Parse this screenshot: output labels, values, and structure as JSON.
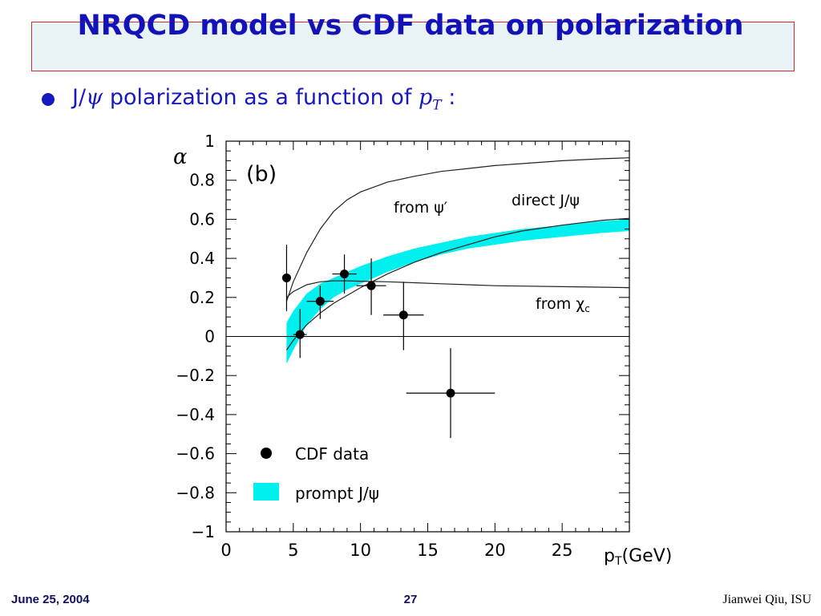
{
  "slide": {
    "title": "NRQCD model vs CDF data on polarization",
    "bullet": {
      "prefix": "J/",
      "psi": "ψ",
      "middle": " polarization as a function of ",
      "pt_p": "p",
      "pt_sub": "T",
      "suffix": " :"
    }
  },
  "footer": {
    "date": "June 25, 2004",
    "page": "27",
    "author": "Jianwei Qiu, ISU"
  },
  "colors": {
    "title": "#1212b8",
    "bullet": "#1818c0",
    "band": "#00f0f0",
    "title_border": "#d62a2a",
    "title_bg": "#e9f3f5"
  },
  "chart_data": {
    "type": "line",
    "panel_label": "(b)",
    "ylabel": "α",
    "xlabel_main": "p",
    "xlabel_sub": "T",
    "xlabel_tail": "(GeV)",
    "xlim": [
      0,
      30
    ],
    "ylim": [
      -1,
      1
    ],
    "x_ticks": [
      0,
      5,
      10,
      15,
      20,
      25
    ],
    "y_ticks": [
      {
        "v": 1,
        "label": "1"
      },
      {
        "v": 0.8,
        "label": "0.8"
      },
      {
        "v": 0.6,
        "label": "0.6"
      },
      {
        "v": 0.4,
        "label": "0.4"
      },
      {
        "v": 0.2,
        "label": "0.2"
      },
      {
        "v": 0,
        "label": "0"
      },
      {
        "v": -0.2,
        "label": "−0.2"
      },
      {
        "v": -0.4,
        "label": "−0.4"
      },
      {
        "v": -0.6,
        "label": "−0.6"
      },
      {
        "v": -0.8,
        "label": "−0.8"
      },
      {
        "v": -1,
        "label": "−1"
      }
    ],
    "grid": false,
    "series": [
      {
        "name": "from ψ′",
        "kind": "curve",
        "x": [
          4.5,
          5,
          6,
          7,
          8,
          9,
          10,
          12,
          14,
          16,
          18,
          20,
          22,
          25,
          28,
          30
        ],
        "y": [
          0.18,
          0.28,
          0.43,
          0.55,
          0.64,
          0.7,
          0.74,
          0.79,
          0.82,
          0.845,
          0.86,
          0.875,
          0.885,
          0.9,
          0.91,
          0.915
        ]
      },
      {
        "name": "direct J/ψ",
        "kind": "curve",
        "x": [
          4.5,
          5,
          6,
          7,
          8,
          9,
          10,
          12,
          14,
          16,
          18,
          20,
          22,
          25,
          28,
          30
        ],
        "y": [
          -0.07,
          -0.02,
          0.06,
          0.12,
          0.17,
          0.21,
          0.25,
          0.32,
          0.38,
          0.43,
          0.47,
          0.51,
          0.54,
          0.57,
          0.595,
          0.605
        ]
      },
      {
        "name": "from χc",
        "kind": "curve",
        "x": [
          4.5,
          5,
          6,
          7,
          8,
          9,
          10,
          12,
          14,
          16,
          18,
          20,
          25,
          30
        ],
        "y": [
          0.2,
          0.23,
          0.265,
          0.28,
          0.285,
          0.285,
          0.283,
          0.28,
          0.275,
          0.27,
          0.265,
          0.26,
          0.255,
          0.25
        ]
      },
      {
        "name": "prompt J/ψ",
        "kind": "band",
        "x": [
          4.5,
          5,
          6,
          7,
          8,
          9,
          10,
          12,
          14,
          16,
          18,
          20,
          22,
          25,
          28,
          30
        ],
        "y_low": [
          -0.14,
          -0.07,
          0.06,
          0.14,
          0.2,
          0.24,
          0.27,
          0.33,
          0.38,
          0.42,
          0.45,
          0.47,
          0.49,
          0.51,
          0.53,
          0.54
        ],
        "y_high": [
          0.07,
          0.13,
          0.22,
          0.27,
          0.3,
          0.33,
          0.36,
          0.41,
          0.45,
          0.48,
          0.51,
          0.53,
          0.55,
          0.57,
          0.59,
          0.6
        ]
      },
      {
        "name": "CDF data",
        "kind": "points",
        "points": [
          {
            "x": 4.5,
            "y": 0.3,
            "xerr": 0.3,
            "yerr_up": 0.17,
            "yerr_down": 0.17
          },
          {
            "x": 5.5,
            "y": 0.01,
            "xerr": 0.5,
            "yerr_up": 0.13,
            "yerr_down": 0.12
          },
          {
            "x": 7.0,
            "y": 0.18,
            "xerr": 1.0,
            "yerr_up": 0.08,
            "yerr_down": 0.09
          },
          {
            "x": 8.8,
            "y": 0.32,
            "xerr": 0.9,
            "yerr_up": 0.1,
            "yerr_down": 0.1
          },
          {
            "x": 10.8,
            "y": 0.26,
            "xerr": 1.1,
            "yerr_up": 0.14,
            "yerr_down": 0.15
          },
          {
            "x": 13.2,
            "y": 0.11,
            "xerr": 1.5,
            "yerr_up": 0.17,
            "yerr_down": 0.18
          },
          {
            "x": 16.7,
            "y": -0.29,
            "xerr": 3.3,
            "yerr_up": 0.23,
            "yerr_down": 0.23
          }
        ]
      }
    ],
    "curve_labels": {
      "psi_prime": "from ψ′",
      "direct": "direct J/ψ",
      "chic_from": "from χ",
      "chic_sub": "c"
    },
    "legend": {
      "placement": "bottom-left",
      "items": [
        {
          "label": "CDF data",
          "symbol": "dot"
        },
        {
          "label": "prompt J/ψ",
          "symbol": "band"
        }
      ]
    }
  }
}
